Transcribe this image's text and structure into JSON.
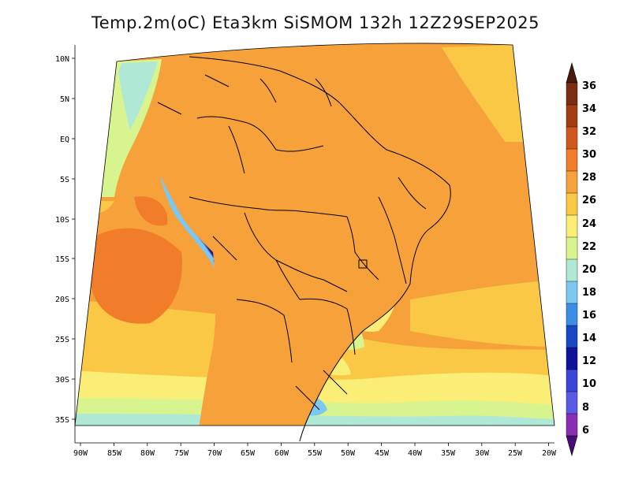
{
  "title": "Temp.2m(oC) Eta3km SiSMOM 132h 12Z29SEP2025",
  "map": {
    "variable": "2 m air temperature",
    "units": "oC",
    "lat_ticks": [
      "10N",
      "5N",
      "EQ",
      "5S",
      "10S",
      "15S",
      "20S",
      "25S",
      "30S",
      "35S"
    ],
    "lon_ticks": [
      "90W",
      "85W",
      "80W",
      "75W",
      "70W",
      "65W",
      "60W",
      "55W",
      "50W",
      "45W",
      "40W",
      "35W",
      "30W",
      "25W",
      "20W"
    ]
  },
  "colorbar": {
    "labels": [
      "36",
      "34",
      "32",
      "30",
      "28",
      "26",
      "24",
      "22",
      "20",
      "18",
      "16",
      "14",
      "12",
      "10",
      "8",
      "6"
    ],
    "colors": [
      "#4a1a08",
      "#7a2d10",
      "#a33e12",
      "#d2571e",
      "#f17d2a",
      "#f6a13a",
      "#fac845",
      "#fbee77",
      "#d7f48e",
      "#b0e8d6",
      "#7cc8f2",
      "#3b8ee6",
      "#1648c4",
      "#10129a",
      "#3a46d8",
      "#5a5ae6",
      "#8a2cb4",
      "#4b0a7a"
    ]
  }
}
